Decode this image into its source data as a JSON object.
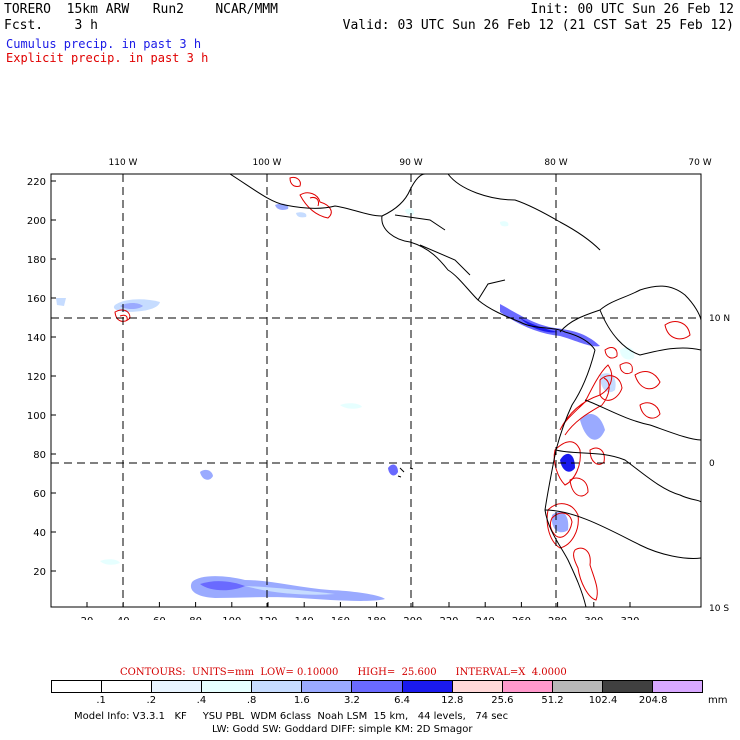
{
  "header": {
    "model": "TORERO  15km ARW   Run2    NCAR/MMM",
    "fcst": "Fcst.    3 h",
    "init": "Init: 00 UTC Sun 26 Feb 12",
    "valid": "Valid: 03 UTC Sun 26 Feb 12 (21 CST Sat 25 Feb 12)"
  },
  "legend": {
    "cumulus": "Cumulus precip. in past 3 h",
    "explicit": "Explicit precip. in past 3 h",
    "cumulus_color": "#1a1ae6",
    "explicit_color": "#e00000"
  },
  "map": {
    "lon_labels": [
      "110 W",
      "100 W",
      "90 W",
      "80 W",
      "70 W"
    ],
    "lat_labels": [
      "10 N",
      "0",
      "10 S"
    ],
    "y_ticks": [
      "220",
      "200",
      "180",
      "160",
      "140",
      "120",
      "100",
      "80",
      "60",
      "40",
      "20"
    ],
    "x_ticks": [
      "20",
      "40",
      "60",
      "80",
      "100",
      "120",
      "140",
      "160",
      "180",
      "200",
      "220",
      "240",
      "260",
      "280",
      "300",
      "320"
    ]
  },
  "contours": {
    "text": "CONTOURS:  UNITS=mm  LOW= 0.10000      HIGH=  25.600      INTERVAL=X  4.0000"
  },
  "colorbar": {
    "labels": [
      ".1",
      ".2",
      ".4",
      ".8",
      "1.6",
      "3.2",
      "6.4",
      "12.8",
      "25.6",
      "51.2",
      "102.4",
      "204.8"
    ],
    "unit": "mm",
    "colors": [
      "#ffffff",
      "#ffffff",
      "#e8f4ff",
      "#e6ffff",
      "#c6dcff",
      "#9aaaff",
      "#6a6aff",
      "#1a1aee",
      "#ffd8d8",
      "#ff99cc",
      "#b8b8b8",
      "#404040",
      "#d8a8ff"
    ]
  },
  "footer": {
    "line1": "Model Info: V3.3.1   KF     YSU PBL  WDM 6class  Noah LSM  15 km,   44 levels,   74 sec",
    "line2": "LW: Godd SW: Goddard DIFF: simple KM: 2D Smagor"
  }
}
